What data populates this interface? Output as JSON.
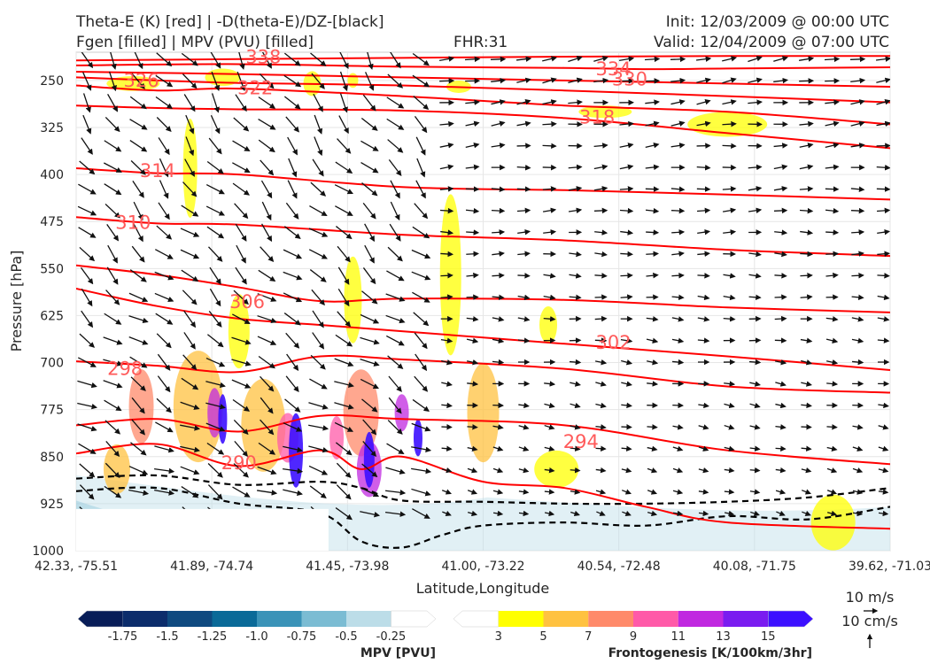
{
  "header": {
    "title_line1": "Theta-E (K) [red] | -D(theta-E)/DZ-[black]",
    "title_line2": "Fgen [filled] | MPV (PVU) [filled]",
    "fhr": "FHR:31",
    "init": "Init: 12/03/2009 @ 00:00 UTC",
    "valid": "Valid: 12/04/2009 @ 07:00 UTC"
  },
  "chart_data": {
    "type": "cross-section",
    "xlabel": "Latitude,Longitude",
    "ylabel": "Pressure [hPa]",
    "x_ticks": [
      "42.33, -75.51",
      "41.89, -74.74",
      "41.45, -73.98",
      "41.00, -73.22",
      "40.54, -72.48",
      "40.08, -71.75",
      "39.62, -71.03"
    ],
    "y_ticks": [
      250,
      325,
      400,
      475,
      550,
      625,
      700,
      775,
      850,
      925,
      1000
    ],
    "ylim": [
      1000,
      205
    ],
    "grid": true,
    "theta_e_contours": [
      {
        "label": "338",
        "points": [
          [
            0,
            218
          ],
          [
            0.2,
            216
          ],
          [
            0.4,
            214
          ],
          [
            0.6,
            212
          ],
          [
            0.8,
            211
          ],
          [
            1,
            211
          ]
        ]
      },
      {
        "label": "334",
        "points": [
          [
            0,
            226
          ],
          [
            0.2,
            224
          ],
          [
            0.4,
            228
          ],
          [
            0.6,
            230
          ],
          [
            0.7,
            232
          ],
          [
            0.8,
            231
          ],
          [
            1,
            229
          ]
        ]
      },
      {
        "label": "330",
        "points": [
          [
            0,
            236
          ],
          [
            0.2,
            240
          ],
          [
            0.4,
            245
          ],
          [
            0.6,
            250
          ],
          [
            0.8,
            255
          ],
          [
            1,
            260
          ]
        ]
      },
      {
        "label": "326",
        "points": [
          [
            0,
            245
          ],
          [
            0.1,
            250
          ],
          [
            0.2,
            254
          ],
          [
            0.4,
            258
          ],
          [
            0.6,
            266
          ],
          [
            0.8,
            275
          ],
          [
            1,
            285
          ]
        ]
      },
      {
        "label": "322",
        "points": [
          [
            0,
            258
          ],
          [
            0.1,
            266
          ],
          [
            0.2,
            263
          ],
          [
            0.4,
            275
          ],
          [
            0.6,
            290
          ],
          [
            0.8,
            300
          ],
          [
            1,
            320
          ]
        ]
      },
      {
        "label": "318",
        "points": [
          [
            0,
            290
          ],
          [
            0.1,
            294
          ],
          [
            0.2,
            296
          ],
          [
            0.4,
            298
          ],
          [
            0.6,
            310
          ],
          [
            0.8,
            334
          ],
          [
            1,
            358
          ]
        ]
      },
      {
        "label": "314",
        "points": [
          [
            0,
            390
          ],
          [
            0.1,
            398
          ],
          [
            0.2,
            400
          ],
          [
            0.4,
            420
          ],
          [
            0.6,
            425
          ],
          [
            0.8,
            432
          ],
          [
            1,
            440
          ]
        ]
      },
      {
        "label": "310",
        "points": [
          [
            0,
            468
          ],
          [
            0.1,
            478
          ],
          [
            0.2,
            480
          ],
          [
            0.4,
            496
          ],
          [
            0.6,
            505
          ],
          [
            0.8,
            520
          ],
          [
            1,
            530
          ]
        ]
      },
      {
        "label": "306",
        "points": [
          [
            0,
            545
          ],
          [
            0.1,
            560
          ],
          [
            0.2,
            580
          ],
          [
            0.3,
            602
          ],
          [
            0.4,
            598
          ],
          [
            0.6,
            600
          ],
          [
            0.8,
            612
          ],
          [
            1,
            620
          ]
        ]
      },
      {
        "label": "302",
        "points": [
          [
            0,
            582
          ],
          [
            0.1,
            610
          ],
          [
            0.2,
            630
          ],
          [
            0.3,
            640
          ],
          [
            0.4,
            650
          ],
          [
            0.6,
            670
          ],
          [
            0.8,
            690
          ],
          [
            1,
            712
          ]
        ]
      },
      {
        "label": "298",
        "points": [
          [
            0,
            698
          ],
          [
            0.1,
            705
          ],
          [
            0.2,
            715
          ],
          [
            0.3,
            690
          ],
          [
            0.4,
            695
          ],
          [
            0.6,
            710
          ],
          [
            0.8,
            738
          ],
          [
            1,
            748
          ]
        ]
      },
      {
        "label": "294",
        "points": [
          [
            0,
            800
          ],
          [
            0.1,
            790
          ],
          [
            0.2,
            810
          ],
          [
            0.3,
            785
          ],
          [
            0.4,
            790
          ],
          [
            0.6,
            800
          ],
          [
            0.8,
            840
          ],
          [
            1,
            862
          ]
        ]
      },
      {
        "label": "290",
        "points": [
          [
            0,
            845
          ],
          [
            0.1,
            830
          ],
          [
            0.2,
            865
          ],
          [
            0.3,
            840
          ],
          [
            0.35,
            870
          ],
          [
            0.4,
            850
          ],
          [
            0.5,
            890
          ],
          [
            0.6,
            900
          ],
          [
            0.7,
            930
          ],
          [
            0.8,
            955
          ],
          [
            1,
            965
          ]
        ]
      }
    ],
    "dthetae_dz_dashed": [
      {
        "points": [
          [
            0,
            885
          ],
          [
            0.1,
            880
          ],
          [
            0.2,
            895
          ],
          [
            0.3,
            890
          ],
          [
            0.35,
            900
          ],
          [
            0.4,
            920
          ],
          [
            0.5,
            922
          ],
          [
            0.6,
            925
          ],
          [
            0.7,
            925
          ],
          [
            0.8,
            922
          ],
          [
            0.9,
            915
          ],
          [
            1,
            900
          ]
        ]
      },
      {
        "points": [
          [
            0,
            905
          ],
          [
            0.1,
            900
          ],
          [
            0.2,
            925
          ],
          [
            0.3,
            940
          ],
          [
            0.35,
            985
          ],
          [
            0.4,
            995
          ],
          [
            0.45,
            975
          ],
          [
            0.5,
            960
          ],
          [
            0.6,
            955
          ],
          [
            0.7,
            960
          ],
          [
            0.8,
            945
          ],
          [
            0.9,
            950
          ],
          [
            1,
            930
          ]
        ]
      }
    ],
    "mpv_colorbar": {
      "title": "MPV [PVU]",
      "ticks": [
        "-1.75",
        "-1.5",
        "-1.25",
        "-1.0",
        "-0.75",
        "-0.5",
        "-0.25"
      ],
      "colors": [
        "#081d58",
        "#0c2c6b",
        "#0f4a80",
        "#0a6a98",
        "#3a93b8",
        "#7bbcd3",
        "#bcdde8",
        "#ffffff"
      ]
    },
    "fgen_colorbar": {
      "title": "Frontogenesis [K/100km/3hr]",
      "ticks": [
        "3",
        "5",
        "7",
        "9",
        "11",
        "13",
        "15"
      ],
      "colors": [
        "#ffffff",
        "#ffff00",
        "#ffc240",
        "#ff8a6a",
        "#ff5aa8",
        "#c028e0",
        "#7a1cf0",
        "#3c10ff"
      ]
    },
    "vector_key": {
      "u_label": "10 m/s",
      "w_label": "10 cm/s"
    }
  }
}
